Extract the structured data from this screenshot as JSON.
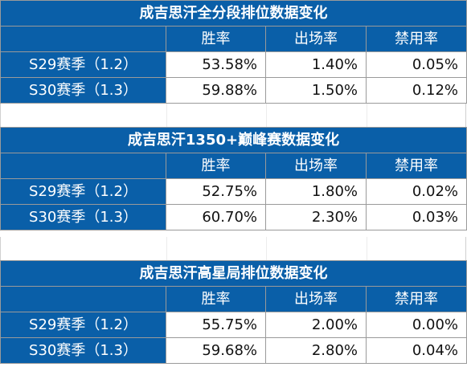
{
  "tables": [
    {
      "title": "成吉思汗全分段排位数据变化",
      "headers": [
        "",
        "胜率",
        "出场率",
        "禁用率"
      ],
      "rows": [
        {
          "label": "S29赛季（1.2）",
          "win": "53.58%",
          "pick": "1.40%",
          "ban": "0.05%"
        },
        {
          "label": "S30赛季（1.3）",
          "win": "59.88%",
          "pick": "1.50%",
          "ban": "0.12%"
        }
      ]
    },
    {
      "title": "成吉思汗1350+巅峰赛数据变化",
      "headers": [
        "",
        "胜率",
        "出场率",
        "禁用率"
      ],
      "rows": [
        {
          "label": "S29赛季（1.2）",
          "win": "52.75%",
          "pick": "1.80%",
          "ban": "0.02%"
        },
        {
          "label": "S30赛季（1.3）",
          "win": "60.70%",
          "pick": "2.30%",
          "ban": "0.03%"
        }
      ]
    },
    {
      "title": "成吉思汗高星局排位数据变化",
      "headers": [
        "",
        "胜率",
        "出场率",
        "禁用率"
      ],
      "rows": [
        {
          "label": "S29赛季（1.2）",
          "win": "55.75%",
          "pick": "2.00%",
          "ban": "0.00%"
        },
        {
          "label": "S30赛季（1.3）",
          "win": "59.68%",
          "pick": "2.80%",
          "ban": "0.04%"
        }
      ]
    }
  ],
  "colors": {
    "header_blue": "#0a5fa8",
    "text_white": "#ffffff",
    "value_text": "#111111",
    "grid": "#9a9a9a"
  }
}
